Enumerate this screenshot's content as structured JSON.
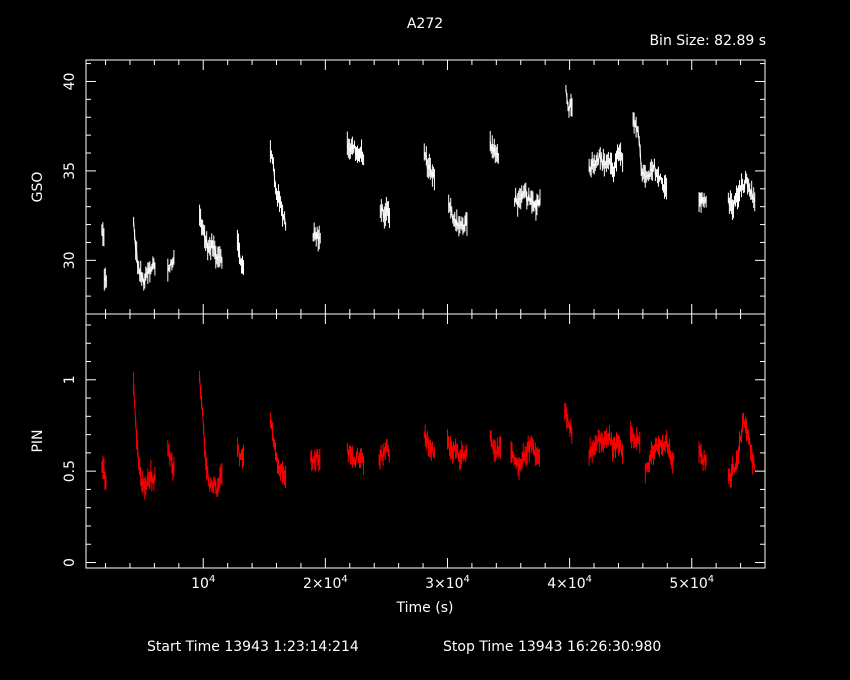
{
  "title": "A272",
  "bin_size_label": "Bin Size:  82.89  s",
  "xlabel": "Time (s)",
  "start_time_text": "Start Time 13943  1:23:14:214",
  "stop_time_text": "Stop Time 13943 16:26:30:980",
  "colors": {
    "background": "#000000",
    "axes": "#ffffff",
    "gso": "#ffffff",
    "pin": "#ff0000"
  },
  "chart_data": [
    {
      "type": "line",
      "ylabel": "GSO",
      "color": "#ffffff",
      "xlim": [
        400,
        56000
      ],
      "ylim": [
        27,
        41.2
      ],
      "x_ticks": [
        {
          "value": 10000,
          "mantissa": "",
          "exp": "4"
        },
        {
          "value": 20000,
          "mantissa": "2×",
          "exp": "4"
        },
        {
          "value": 30000,
          "mantissa": "3×",
          "exp": "4"
        },
        {
          "value": 40000,
          "mantissa": "4×",
          "exp": "4"
        },
        {
          "value": 50000,
          "mantissa": "5×",
          "exp": "4"
        }
      ],
      "y_ticks": [
        30,
        35,
        40
      ],
      "segments": [
        {
          "x0": 1700,
          "x1": 1900,
          "ys": [
            31.6,
            31.1
          ]
        },
        {
          "x0": 1900,
          "x1": 2100,
          "ys": [
            29.1,
            28.6
          ]
        },
        {
          "x0": 4300,
          "x1": 6100,
          "ys": [
            32.0,
            30.5,
            29.5,
            29.1,
            28.8,
            29.0,
            29.4,
            29.3,
            29.8,
            29.5
          ]
        },
        {
          "x0": 7100,
          "x1": 7600,
          "ys": [
            29.5,
            29.8,
            30.0
          ]
        },
        {
          "x0": 9700,
          "x1": 11600,
          "ys": [
            32.5,
            32.0,
            31.3,
            30.8,
            30.6,
            30.9,
            30.5,
            30.2,
            30.4,
            30.0
          ]
        },
        {
          "x0": 12800,
          "x1": 13300,
          "ys": [
            31.0,
            30.0,
            29.5
          ]
        },
        {
          "x0": 15500,
          "x1": 16800,
          "ys": [
            36.0,
            35.5,
            34.0,
            33.5,
            33.0,
            32.5,
            32.0
          ]
        },
        {
          "x0": 19000,
          "x1": 19600,
          "ys": [
            31.5,
            31.3,
            31.4
          ]
        },
        {
          "x0": 21800,
          "x1": 23200,
          "ys": [
            36.5,
            36.2,
            36.4,
            35.8,
            36.0,
            35.2
          ]
        },
        {
          "x0": 24500,
          "x1": 25300,
          "ys": [
            33.0,
            32.5,
            32.8,
            32.4
          ]
        },
        {
          "x0": 28100,
          "x1": 29000,
          "ys": [
            36.0,
            35.3,
            35.0,
            34.5
          ]
        },
        {
          "x0": 30100,
          "x1": 31600,
          "ys": [
            33.0,
            32.5,
            32.2,
            32.0,
            31.8,
            32.3
          ]
        },
        {
          "x0": 33500,
          "x1": 34200,
          "ys": [
            36.5,
            36.0,
            35.8
          ]
        },
        {
          "x0": 35500,
          "x1": 37600,
          "ys": [
            33.5,
            33.2,
            33.8,
            33.3,
            33.0,
            33.5
          ]
        },
        {
          "x0": 39700,
          "x1": 40200,
          "ys": [
            39.5,
            38.5,
            38.8
          ]
        },
        {
          "x0": 41600,
          "x1": 44400,
          "ys": [
            35.2,
            35.5,
            35.8,
            35.4,
            35.6,
            35.0,
            36.0,
            35.3
          ]
        },
        {
          "x0": 45200,
          "x1": 48000,
          "ys": [
            38.0,
            37.5,
            35.0,
            34.5,
            34.8,
            35.2,
            34.6,
            34.3,
            34.0
          ]
        },
        {
          "x0": 50600,
          "x1": 51200,
          "ys": [
            33.5,
            33.2,
            33.4
          ]
        },
        {
          "x0": 53000,
          "x1": 55200,
          "ys": [
            33.3,
            33.0,
            33.6,
            34.0,
            34.5,
            33.8,
            33.2
          ]
        }
      ]
    },
    {
      "type": "line",
      "ylabel": "PIN",
      "color": "#ff0000",
      "xlim": [
        400,
        56000
      ],
      "ylim": [
        -0.03,
        1.36
      ],
      "x_ticks": [
        {
          "value": 10000,
          "mantissa": "",
          "exp": "4"
        },
        {
          "value": 20000,
          "mantissa": "2×",
          "exp": "4"
        },
        {
          "value": 30000,
          "mantissa": "3×",
          "exp": "4"
        },
        {
          "value": 40000,
          "mantissa": "4×",
          "exp": "4"
        },
        {
          "value": 50000,
          "mantissa": "5×",
          "exp": "4"
        }
      ],
      "y_ticks": [
        0,
        0.5,
        1
      ],
      "segments": [
        {
          "x0": 1700,
          "x1": 2100,
          "ys": [
            0.55,
            0.48,
            0.42
          ]
        },
        {
          "x0": 4300,
          "x1": 6100,
          "ys": [
            0.95,
            0.7,
            0.55,
            0.45,
            0.42,
            0.4,
            0.45,
            0.48,
            0.43,
            0.5
          ]
        },
        {
          "x0": 7100,
          "x1": 7600,
          "ys": [
            0.65,
            0.55,
            0.5
          ]
        },
        {
          "x0": 9700,
          "x1": 11600,
          "ys": [
            1.0,
            0.85,
            0.6,
            0.48,
            0.43,
            0.4,
            0.42,
            0.38,
            0.45,
            0.5
          ]
        },
        {
          "x0": 12800,
          "x1": 13300,
          "ys": [
            0.62,
            0.58,
            0.6
          ]
        },
        {
          "x0": 15500,
          "x1": 16800,
          "ys": [
            0.8,
            0.7,
            0.6,
            0.52,
            0.5,
            0.48,
            0.5
          ]
        },
        {
          "x0": 18800,
          "x1": 19600,
          "ys": [
            0.6,
            0.55,
            0.58,
            0.56
          ]
        },
        {
          "x0": 21800,
          "x1": 23200,
          "ys": [
            0.62,
            0.58,
            0.55,
            0.6,
            0.57,
            0.55
          ]
        },
        {
          "x0": 24400,
          "x1": 25300,
          "ys": [
            0.58,
            0.6,
            0.62,
            0.6
          ]
        },
        {
          "x0": 28100,
          "x1": 29000,
          "ys": [
            0.7,
            0.65,
            0.62,
            0.6
          ]
        },
        {
          "x0": 30000,
          "x1": 31600,
          "ys": [
            0.65,
            0.6,
            0.62,
            0.58,
            0.6,
            0.62
          ]
        },
        {
          "x0": 33500,
          "x1": 34400,
          "ys": [
            0.68,
            0.62,
            0.6
          ]
        },
        {
          "x0": 35200,
          "x1": 37600,
          "ys": [
            0.6,
            0.55,
            0.5,
            0.58,
            0.62,
            0.65,
            0.6,
            0.55
          ]
        },
        {
          "x0": 39600,
          "x1": 40200,
          "ys": [
            0.85,
            0.75,
            0.72
          ]
        },
        {
          "x0": 41600,
          "x1": 44400,
          "ys": [
            0.6,
            0.62,
            0.68,
            0.65,
            0.7,
            0.62,
            0.66,
            0.6
          ]
        },
        {
          "x0": 45000,
          "x1": 45800,
          "ys": [
            0.72,
            0.68,
            0.65
          ]
        },
        {
          "x0": 46200,
          "x1": 48600,
          "ys": [
            0.5,
            0.55,
            0.6,
            0.65,
            0.62,
            0.66,
            0.58,
            0.55
          ]
        },
        {
          "x0": 50600,
          "x1": 51200,
          "ys": [
            0.6,
            0.55,
            0.58
          ]
        },
        {
          "x0": 53000,
          "x1": 55200,
          "ys": [
            0.45,
            0.5,
            0.55,
            0.65,
            0.78,
            0.72,
            0.6,
            0.5
          ]
        }
      ]
    }
  ]
}
